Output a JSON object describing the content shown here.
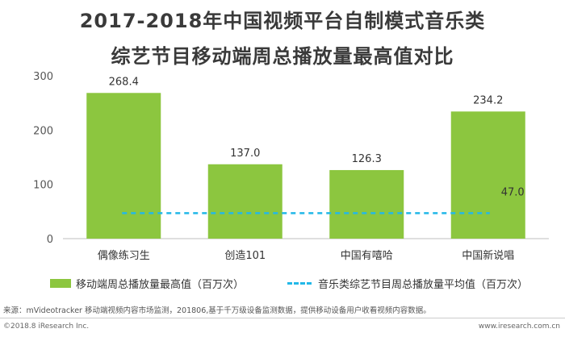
{
  "title_line1": "2017-2018年中国视频平台自制模式音乐类",
  "title_line2": "综艺节目移动端周总播放量最高值对比",
  "chart_data": {
    "type": "bar",
    "title": "2017-2018年中国视频平台自制模式音乐类综艺节目移动端周总播放量最高值对比",
    "categories": [
      "偶像练习生",
      "创造101",
      "中国有嘻哈",
      "中国新说唱"
    ],
    "series": [
      {
        "name": "移动端周总播放量最高值（百万次）",
        "type": "bar",
        "values": [
          268.4,
          137.0,
          126.3,
          234.2
        ],
        "labels": [
          "268.4",
          "137.0",
          "126.3",
          "234.2"
        ],
        "color": "#8cc63f"
      },
      {
        "name": "音乐类综艺节目周总播放量平均值（百万次）",
        "type": "line",
        "style": "dashed",
        "value": 47.0,
        "label": "47.0",
        "color": "#22b8e8"
      }
    ],
    "yticks": [
      "0",
      "100",
      "200",
      "300"
    ],
    "ylim": [
      0,
      300
    ],
    "xlabel": "",
    "ylabel": "",
    "grid": false,
    "legend_position": "bottom"
  },
  "source": "来源：mVideotracker 移动端视频内容市场监测，201806,基于千万级设备监测数据，提供移动设备用户收看视频内容数据。",
  "copyright": "©2018.8 iResearch Inc.",
  "website": "www.iresearch.com.cn"
}
